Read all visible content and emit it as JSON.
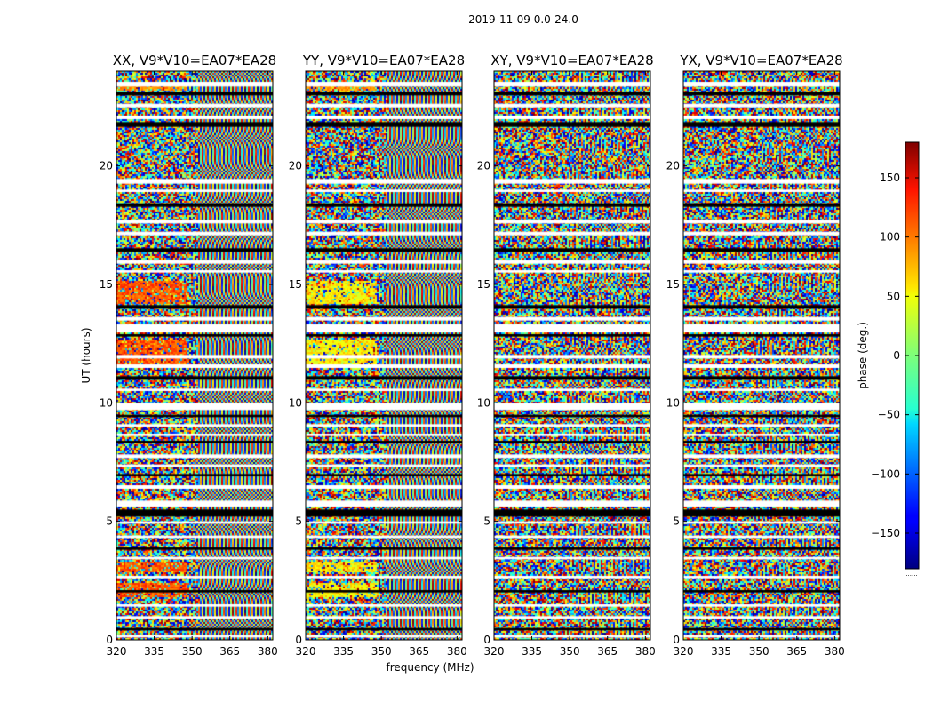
{
  "figure": {
    "suptitle": "2019-11-09 0.0-24.0",
    "xlabel": "frequency (MHz)",
    "ylabel": "UT (hours)",
    "colorbar_label": "phase (deg.)",
    "colorbar_footnote": "......"
  },
  "chart_data": {
    "type": "heatmap",
    "title": "2019-11-09 0.0-24.0",
    "xlabel": "frequency (MHz)",
    "ylabel": "UT (hours)",
    "xlim": [
      320,
      382
    ],
    "ylim": [
      0,
      24
    ],
    "x_ticks": [
      320,
      335,
      350,
      365,
      380
    ],
    "y_ticks": [
      0,
      5,
      10,
      15,
      20
    ],
    "panels": [
      {
        "name": "XX",
        "title": "XX, V9*V10=EA07*EA28"
      },
      {
        "name": "YY",
        "title": "YY, V9*V10=EA07*EA28"
      },
      {
        "name": "XY",
        "title": "XY, V9*V10=EA07*EA28"
      },
      {
        "name": "YX",
        "title": "YX, V9*V10=EA07*EA28"
      }
    ],
    "colorbar": {
      "label": "phase (deg.)",
      "range": [
        -180,
        180
      ],
      "ticks": [
        -150,
        -100,
        -50,
        0,
        50,
        100,
        150
      ],
      "colormap": "jet"
    },
    "flagged_gap_hours": [
      23.45,
      23.05,
      22.55,
      22.05,
      21.75,
      19.35,
      18.95,
      18.35,
      17.65,
      17.15,
      16.45,
      15.95,
      15.55,
      14.05,
      13.55,
      13.15,
      12.85,
      11.95,
      11.55,
      11.05,
      10.55,
      9.85,
      9.45,
      9.05,
      8.65,
      8.35,
      7.75,
      7.35,
      6.95,
      6.45,
      5.75,
      5.35,
      4.95,
      4.35,
      3.85,
      3.45,
      2.65,
      2.05,
      1.45,
      0.95,
      0.45,
      0.15
    ],
    "flagged_gap_widths_hours": [
      0.2,
      0.15,
      0.15,
      0.15,
      0.2,
      0.2,
      0.1,
      0.15,
      0.15,
      0.15,
      0.15,
      0.15,
      0.1,
      0.15,
      0.15,
      0.35,
      0.1,
      0.15,
      0.15,
      0.15,
      0.1,
      0.3,
      0.1,
      0.1,
      0.1,
      0.1,
      0.15,
      0.1,
      0.1,
      0.15,
      0.25,
      0.3,
      0.1,
      0.1,
      0.1,
      0.1,
      0.1,
      0.1,
      0.1,
      0.1,
      0.1,
      0.1
    ]
  }
}
